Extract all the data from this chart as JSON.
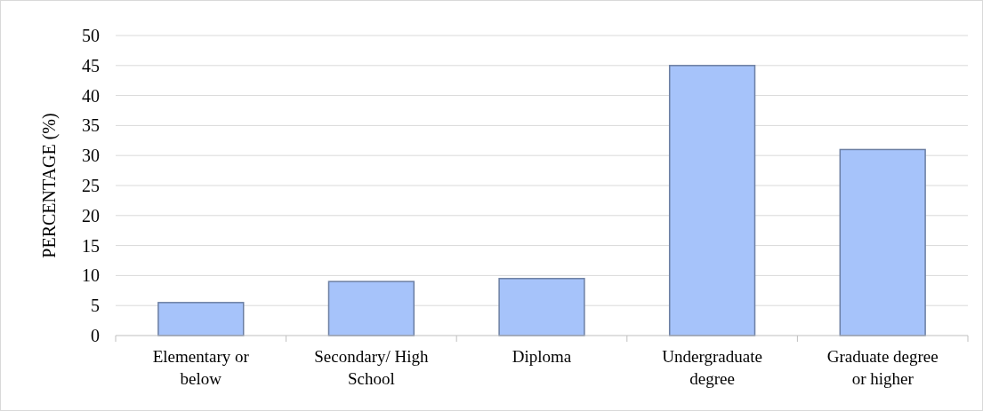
{
  "chart_data": {
    "type": "bar",
    "ylabel": "PERCENTAGE (%)",
    "categories": [
      "Elementary or below",
      "Secondary/ High School",
      "Diploma",
      "Undergraduate degree",
      "Graduate degree or higher"
    ],
    "values": [
      5.5,
      9,
      9.5,
      45,
      31
    ],
    "color": "#a6c3fa",
    "ylim": [
      0,
      50
    ],
    "yticks": [
      0,
      5,
      10,
      15,
      20,
      25,
      30,
      35,
      40,
      45,
      50
    ],
    "grid": "y"
  }
}
